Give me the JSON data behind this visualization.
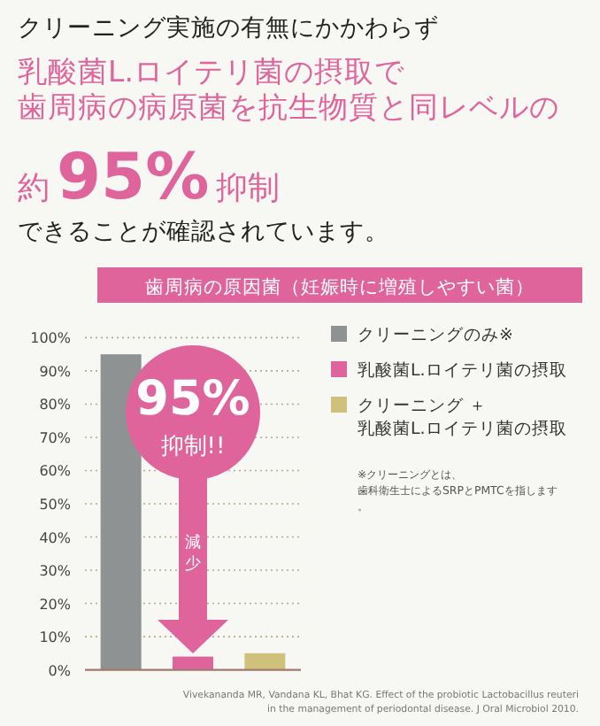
{
  "chart_data": {
    "type": "bar",
    "title": "歯周病の原因菌（妊娠時に増殖しやすい菌）",
    "categories": [
      null,
      null,
      null
    ],
    "series": [
      {
        "name": "クリーニングのみ※",
        "color": "#8e9293",
        "values": [
          95,
          null,
          null
        ]
      },
      {
        "name": "乳酸菌L.ロイテリ菌の摂取",
        "color": "#e0649c",
        "values": [
          null,
          4,
          null
        ]
      },
      {
        "name": "クリーニング ＋乳酸菌L.ロイテリ菌の摂取",
        "color": "#cfc07c",
        "values": [
          null,
          null,
          5
        ]
      }
    ],
    "ylim": [
      0,
      100
    ],
    "yticks": [
      {
        "value": 0,
        "label": "0%"
      },
      {
        "value": 10,
        "label": "10%"
      },
      {
        "value": 20,
        "label": "20%"
      },
      {
        "value": 30,
        "label": "30%"
      },
      {
        "value": 40,
        "label": "40%"
      },
      {
        "value": 50,
        "label": "50%"
      },
      {
        "value": 60,
        "label": "60%"
      },
      {
        "value": 70,
        "label": "70%"
      },
      {
        "value": 80,
        "label": "80%"
      },
      {
        "value": 90,
        "label": "90%"
      },
      {
        "value": 100,
        "label": "100%"
      }
    ],
    "grid": "y",
    "legend": "right",
    "annotations": [
      "クリーニング実施の有無にかかわらず",
      "乳酸菌L.ロイテリ菌の摂取で",
      "歯周病の病原菌を抗生物質と同レベルの",
      "約95%抑制",
      "できることが確認されています。",
      "95%",
      "抑制!!",
      "減少",
      "※クリーニングとは、歯科衛生士によるSRPとPMTCを指します。",
      "Vivekananda MR, Vandana KL, Bhat KG. Effect of the probiotic Lactobacillus reuteri\nin the management of periodontal disease. J Oral Microbiol 2010."
    ]
  }
}
